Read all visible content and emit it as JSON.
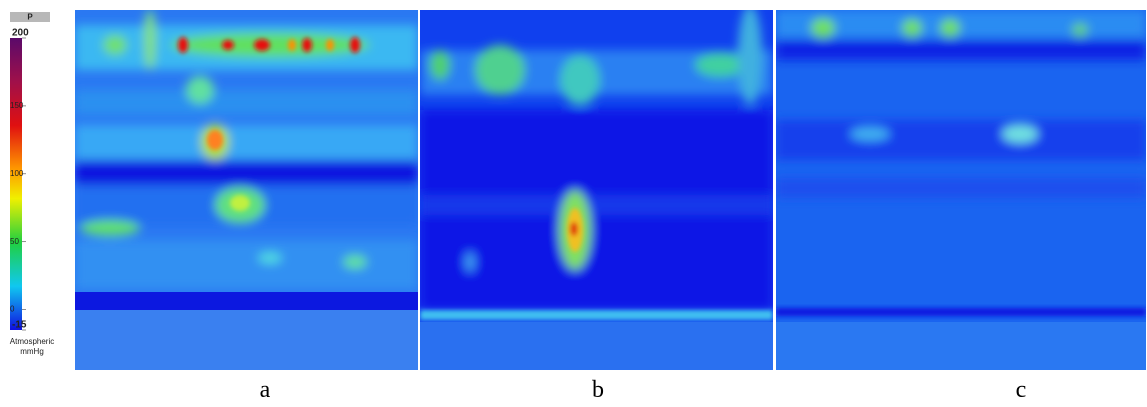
{
  "colorbar": {
    "title": "P",
    "range": [
      -15,
      200
    ],
    "ticks": [
      200,
      150,
      100,
      50,
      0,
      -15
    ],
    "unit": [
      "Atmospheric",
      "mmHg"
    ]
  },
  "panels": [
    "a",
    "b",
    "c"
  ]
}
